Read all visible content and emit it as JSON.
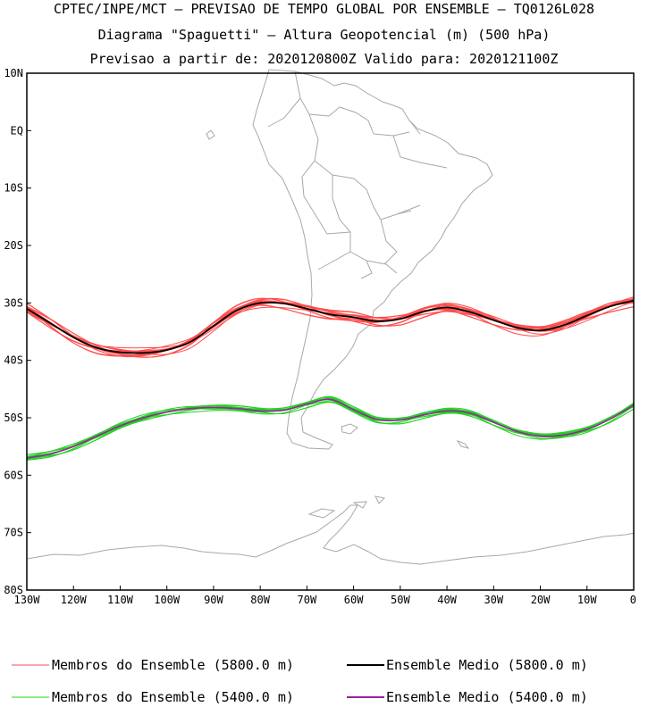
{
  "title": {
    "line1": "CPTEC/INPE/MCT – PREVISAO DE TEMPO GLOBAL POR ENSEMBLE – TQ0126L028",
    "line2": "Diagrama \"Spaguetti\" – Altura Geopotencial (m) (500 hPa)",
    "line3": "Previsao a partir de: 2020120800Z  Valido para: 2020121100Z"
  },
  "map": {
    "lat_range": [
      -80,
      10
    ],
    "lon_range": [
      -130,
      0
    ],
    "lat_ticks": [
      "10N",
      "EQ",
      "10S",
      "20S",
      "30S",
      "40S",
      "50S",
      "60S",
      "70S",
      "80S"
    ],
    "lon_ticks": [
      "130W",
      "120W",
      "110W",
      "100W",
      "90W",
      "80W",
      "70W",
      "60W",
      "50W",
      "40W",
      "30W",
      "20W",
      "10W",
      "0"
    ],
    "coastline_color": "#a8a8a8"
  },
  "contours": {
    "c5800_members_color": "#ff4d4d",
    "c5800_mean_color": "#000000",
    "c5400_members_color": "#22d422",
    "c5400_mean_color": "#a020a0",
    "c5800_mean": {
      "lon": [
        -130,
        -125,
        -120,
        -115,
        -110,
        -105,
        -100,
        -95,
        -90,
        -85,
        -80,
        -75,
        -70,
        -65,
        -60,
        -55,
        -50,
        -45,
        -40,
        -35,
        -30,
        -25,
        -20,
        -15,
        -10,
        -5,
        0
      ],
      "lat": [
        -31.0,
        -33.5,
        -36.0,
        -37.8,
        -38.6,
        -38.7,
        -38.2,
        -36.8,
        -34.0,
        -31.3,
        -30.0,
        -30.1,
        -31.0,
        -32.0,
        -32.5,
        -33.2,
        -32.8,
        -31.5,
        -30.8,
        -31.6,
        -33.0,
        -34.3,
        -34.8,
        -33.9,
        -32.2,
        -30.6,
        -29.6
      ]
    },
    "c5400_mean": {
      "lon": [
        -130,
        -125,
        -120,
        -115,
        -110,
        -105,
        -100,
        -95,
        -90,
        -85,
        -80,
        -75,
        -70,
        -65,
        -60,
        -55,
        -50,
        -45,
        -40,
        -35,
        -30,
        -25,
        -20,
        -15,
        -10,
        -5,
        0
      ],
      "lat": [
        -57.0,
        -56.3,
        -55.0,
        -53.2,
        -51.4,
        -50.0,
        -49.0,
        -48.4,
        -48.2,
        -48.4,
        -48.8,
        -48.7,
        -47.6,
        -46.8,
        -48.6,
        -50.3,
        -50.4,
        -49.5,
        -48.8,
        -49.2,
        -50.8,
        -52.4,
        -53.2,
        -53.0,
        -52.0,
        -50.2,
        -47.8
      ]
    }
  },
  "legend": {
    "items": [
      {
        "label": "Membros do Ensemble (5800.0 m)",
        "color": "#ff4d4d"
      },
      {
        "label": "Ensemble Medio (5800.0 m)",
        "color": "#000000"
      },
      {
        "label": "Membros do Ensemble (5400.0 m)",
        "color": "#22d422"
      },
      {
        "label": "Ensemble Medio (5400.0 m)",
        "color": "#a020a0"
      }
    ]
  }
}
